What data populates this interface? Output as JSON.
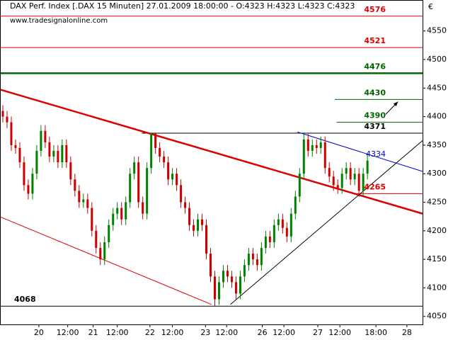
{
  "chart_data": {
    "type": "candlestick",
    "title": "DAX Perf. Index [.DAX  15 Minuten] 27.01.2009 18:00:00 - O:4323 H:4323 L:4323 C:4323",
    "watermark": "www.tradesignalonline.com",
    "y_unit": "€",
    "x": [
      0,
      1,
      2,
      3,
      4,
      5,
      6,
      7,
      8,
      9,
      10,
      11,
      12,
      13,
      14,
      15,
      16,
      17,
      18,
      19,
      20,
      21,
      22,
      23,
      24,
      25,
      26,
      27,
      28,
      29,
      30,
      31,
      32,
      33,
      34,
      35,
      36,
      37,
      38,
      39,
      40,
      41,
      42,
      43,
      44,
      45,
      46,
      47,
      48,
      49,
      50,
      51,
      52,
      53,
      54,
      55,
      56,
      57,
      58,
      59,
      60,
      61,
      62,
      63,
      64,
      65,
      66,
      67,
      68,
      69,
      70,
      71,
      72,
      73,
      74,
      75,
      76,
      77,
      78,
      79,
      80,
      81,
      82,
      83,
      84,
      85,
      86
    ],
    "open": [
      4410,
      4400,
      4390,
      4350,
      4345,
      4320,
      4280,
      4265,
      4300,
      4340,
      4375,
      4355,
      4330,
      4340,
      4320,
      4350,
      4320,
      4290,
      4270,
      4250,
      4255,
      4240,
      4200,
      4170,
      4150,
      4180,
      4210,
      4230,
      4240,
      4220,
      4250,
      4300,
      4320,
      4250,
      4230,
      4310,
      4370,
      4345,
      4330,
      4320,
      4290,
      4300,
      4280,
      4250,
      4240,
      4210,
      4200,
      4220,
      4210,
      4160,
      4120,
      4080,
      4110,
      4130,
      4120,
      4110,
      4090,
      4120,
      4140,
      4160,
      4150,
      4140,
      4170,
      4190,
      4180,
      4210,
      4220,
      4205,
      4190,
      4230,
      4260,
      4300,
      4360,
      4340,
      4350,
      4345,
      4355,
      4310,
      4295,
      4280,
      4275,
      4300,
      4310,
      4290,
      4300,
      4270,
      4300
    ],
    "high": [
      4420,
      4410,
      4400,
      4360,
      4355,
      4330,
      4290,
      4310,
      4350,
      4385,
      4385,
      4365,
      4350,
      4350,
      4360,
      4360,
      4330,
      4300,
      4280,
      4265,
      4265,
      4250,
      4210,
      4180,
      4190,
      4220,
      4240,
      4250,
      4250,
      4260,
      4310,
      4330,
      4330,
      4260,
      4320,
      4372,
      4372,
      4355,
      4340,
      4330,
      4310,
      4310,
      4290,
      4260,
      4250,
      4220,
      4230,
      4230,
      4220,
      4170,
      4130,
      4120,
      4140,
      4140,
      4130,
      4120,
      4130,
      4150,
      4170,
      4170,
      4160,
      4180,
      4200,
      4200,
      4220,
      4230,
      4230,
      4215,
      4240,
      4270,
      4310,
      4371,
      4370,
      4360,
      4360,
      4365,
      4365,
      4320,
      4305,
      4290,
      4310,
      4320,
      4320,
      4310,
      4310,
      4310,
      4333
    ],
    "low": [
      4390,
      4380,
      4340,
      4335,
      4310,
      4270,
      4255,
      4255,
      4290,
      4330,
      4345,
      4320,
      4320,
      4310,
      4310,
      4310,
      4280,
      4260,
      4240,
      4240,
      4230,
      4190,
      4160,
      4140,
      4140,
      4170,
      4200,
      4220,
      4210,
      4210,
      4240,
      4290,
      4240,
      4220,
      4220,
      4300,
      4335,
      4320,
      4310,
      4280,
      4280,
      4270,
      4240,
      4230,
      4200,
      4190,
      4190,
      4200,
      4150,
      4110,
      4068,
      4070,
      4100,
      4110,
      4100,
      4080,
      4080,
      4110,
      4130,
      4140,
      4130,
      4130,
      4160,
      4170,
      4170,
      4200,
      4195,
      4180,
      4180,
      4220,
      4250,
      4290,
      4330,
      4330,
      4335,
      4335,
      4300,
      4285,
      4270,
      4265,
      4265,
      4290,
      4280,
      4280,
      4260,
      4260,
      4290
    ],
    "close": [
      4400,
      4390,
      4350,
      4345,
      4320,
      4280,
      4265,
      4300,
      4340,
      4375,
      4355,
      4330,
      4340,
      4320,
      4350,
      4320,
      4290,
      4270,
      4250,
      4255,
      4240,
      4200,
      4170,
      4150,
      4180,
      4210,
      4230,
      4240,
      4220,
      4250,
      4300,
      4320,
      4250,
      4230,
      4310,
      4370,
      4345,
      4330,
      4320,
      4290,
      4300,
      4280,
      4250,
      4240,
      4210,
      4200,
      4220,
      4210,
      4160,
      4120,
      4080,
      4110,
      4130,
      4120,
      4110,
      4090,
      4120,
      4140,
      4160,
      4150,
      4140,
      4170,
      4190,
      4180,
      4210,
      4220,
      4205,
      4190,
      4230,
      4260,
      4300,
      4360,
      4340,
      4350,
      4345,
      4355,
      4310,
      4295,
      4280,
      4275,
      4300,
      4310,
      4290,
      4300,
      4270,
      4300,
      4323
    ],
    "up_color": "#008000",
    "down_color": "#cc0000",
    "xlim": [
      -0.5,
      99
    ],
    "ylim": [
      4036,
      4603
    ],
    "yticks": [
      4050,
      4100,
      4150,
      4200,
      4250,
      4300,
      4350,
      4400,
      4450,
      4500,
      4550
    ],
    "xticks": [
      {
        "value": 8.5,
        "label": "20"
      },
      {
        "value": 15.3,
        "label": "12:00"
      },
      {
        "value": 21.3,
        "label": "21"
      },
      {
        "value": 27,
        "label": "12:00"
      },
      {
        "value": 34.7,
        "label": "22"
      },
      {
        "value": 40,
        "label": "12:00"
      },
      {
        "value": 47.8,
        "label": "23"
      },
      {
        "value": 52.8,
        "label": "12:00"
      },
      {
        "value": 61.2,
        "label": "26"
      },
      {
        "value": 66.3,
        "label": "12:00"
      },
      {
        "value": 74.3,
        "label": "27"
      },
      {
        "value": 79.5,
        "label": "12:00"
      },
      {
        "value": 88,
        "label": "18:00"
      },
      {
        "value": 95.3,
        "label": "28"
      }
    ],
    "levels": [
      {
        "value": 4576,
        "color": "#dd0000",
        "xstart": -0.5,
        "width": 1,
        "label_side": "right"
      },
      {
        "value": 4521,
        "color": "#dd0000",
        "xstart": -0.5,
        "width": 1,
        "label_side": "right"
      },
      {
        "value": 4476,
        "color": "#006400",
        "xstart": -0.5,
        "width": 2.5,
        "label_side": "right"
      },
      {
        "value": 4430,
        "color": "#006400",
        "xstart": 78.3,
        "width": 1,
        "label_side": "right"
      },
      {
        "value": 4390,
        "color": "#006400",
        "xstart": 78.7,
        "width": 1,
        "label_side": "right"
      },
      {
        "value": 4371,
        "color": "#000000",
        "xstart": 32.8,
        "width": 1,
        "label_side": "right"
      },
      {
        "value": 4265,
        "color": "#dd0000",
        "xstart": 82.8,
        "width": 1,
        "label_side": "right"
      },
      {
        "value": 4068,
        "color": "#000000",
        "xstart": -0.5,
        "width": 1,
        "label_side": "left"
      }
    ],
    "trendlines": [
      {
        "x": [
          -0.5,
          99
        ],
        "y": [
          4447,
          4230
        ],
        "color": "#dd0000",
        "width": 2.5
      },
      {
        "x": [
          -0.5,
          49.2
        ],
        "y": [
          4224,
          4071
        ],
        "color": "#dd0000",
        "width": 1
      },
      {
        "x": [
          53.7,
          99
        ],
        "y": [
          4071,
          4358
        ],
        "color": "#000000",
        "width": 1
      },
      {
        "x": [
          69.5,
          99
        ],
        "y": [
          4373,
          4304
        ],
        "color": "#0000cc",
        "width": 1,
        "label": 4334
      }
    ],
    "arrow": {
      "x": [
        90.3,
        93.2
      ],
      "y": [
        4404,
        4426
      ]
    }
  }
}
